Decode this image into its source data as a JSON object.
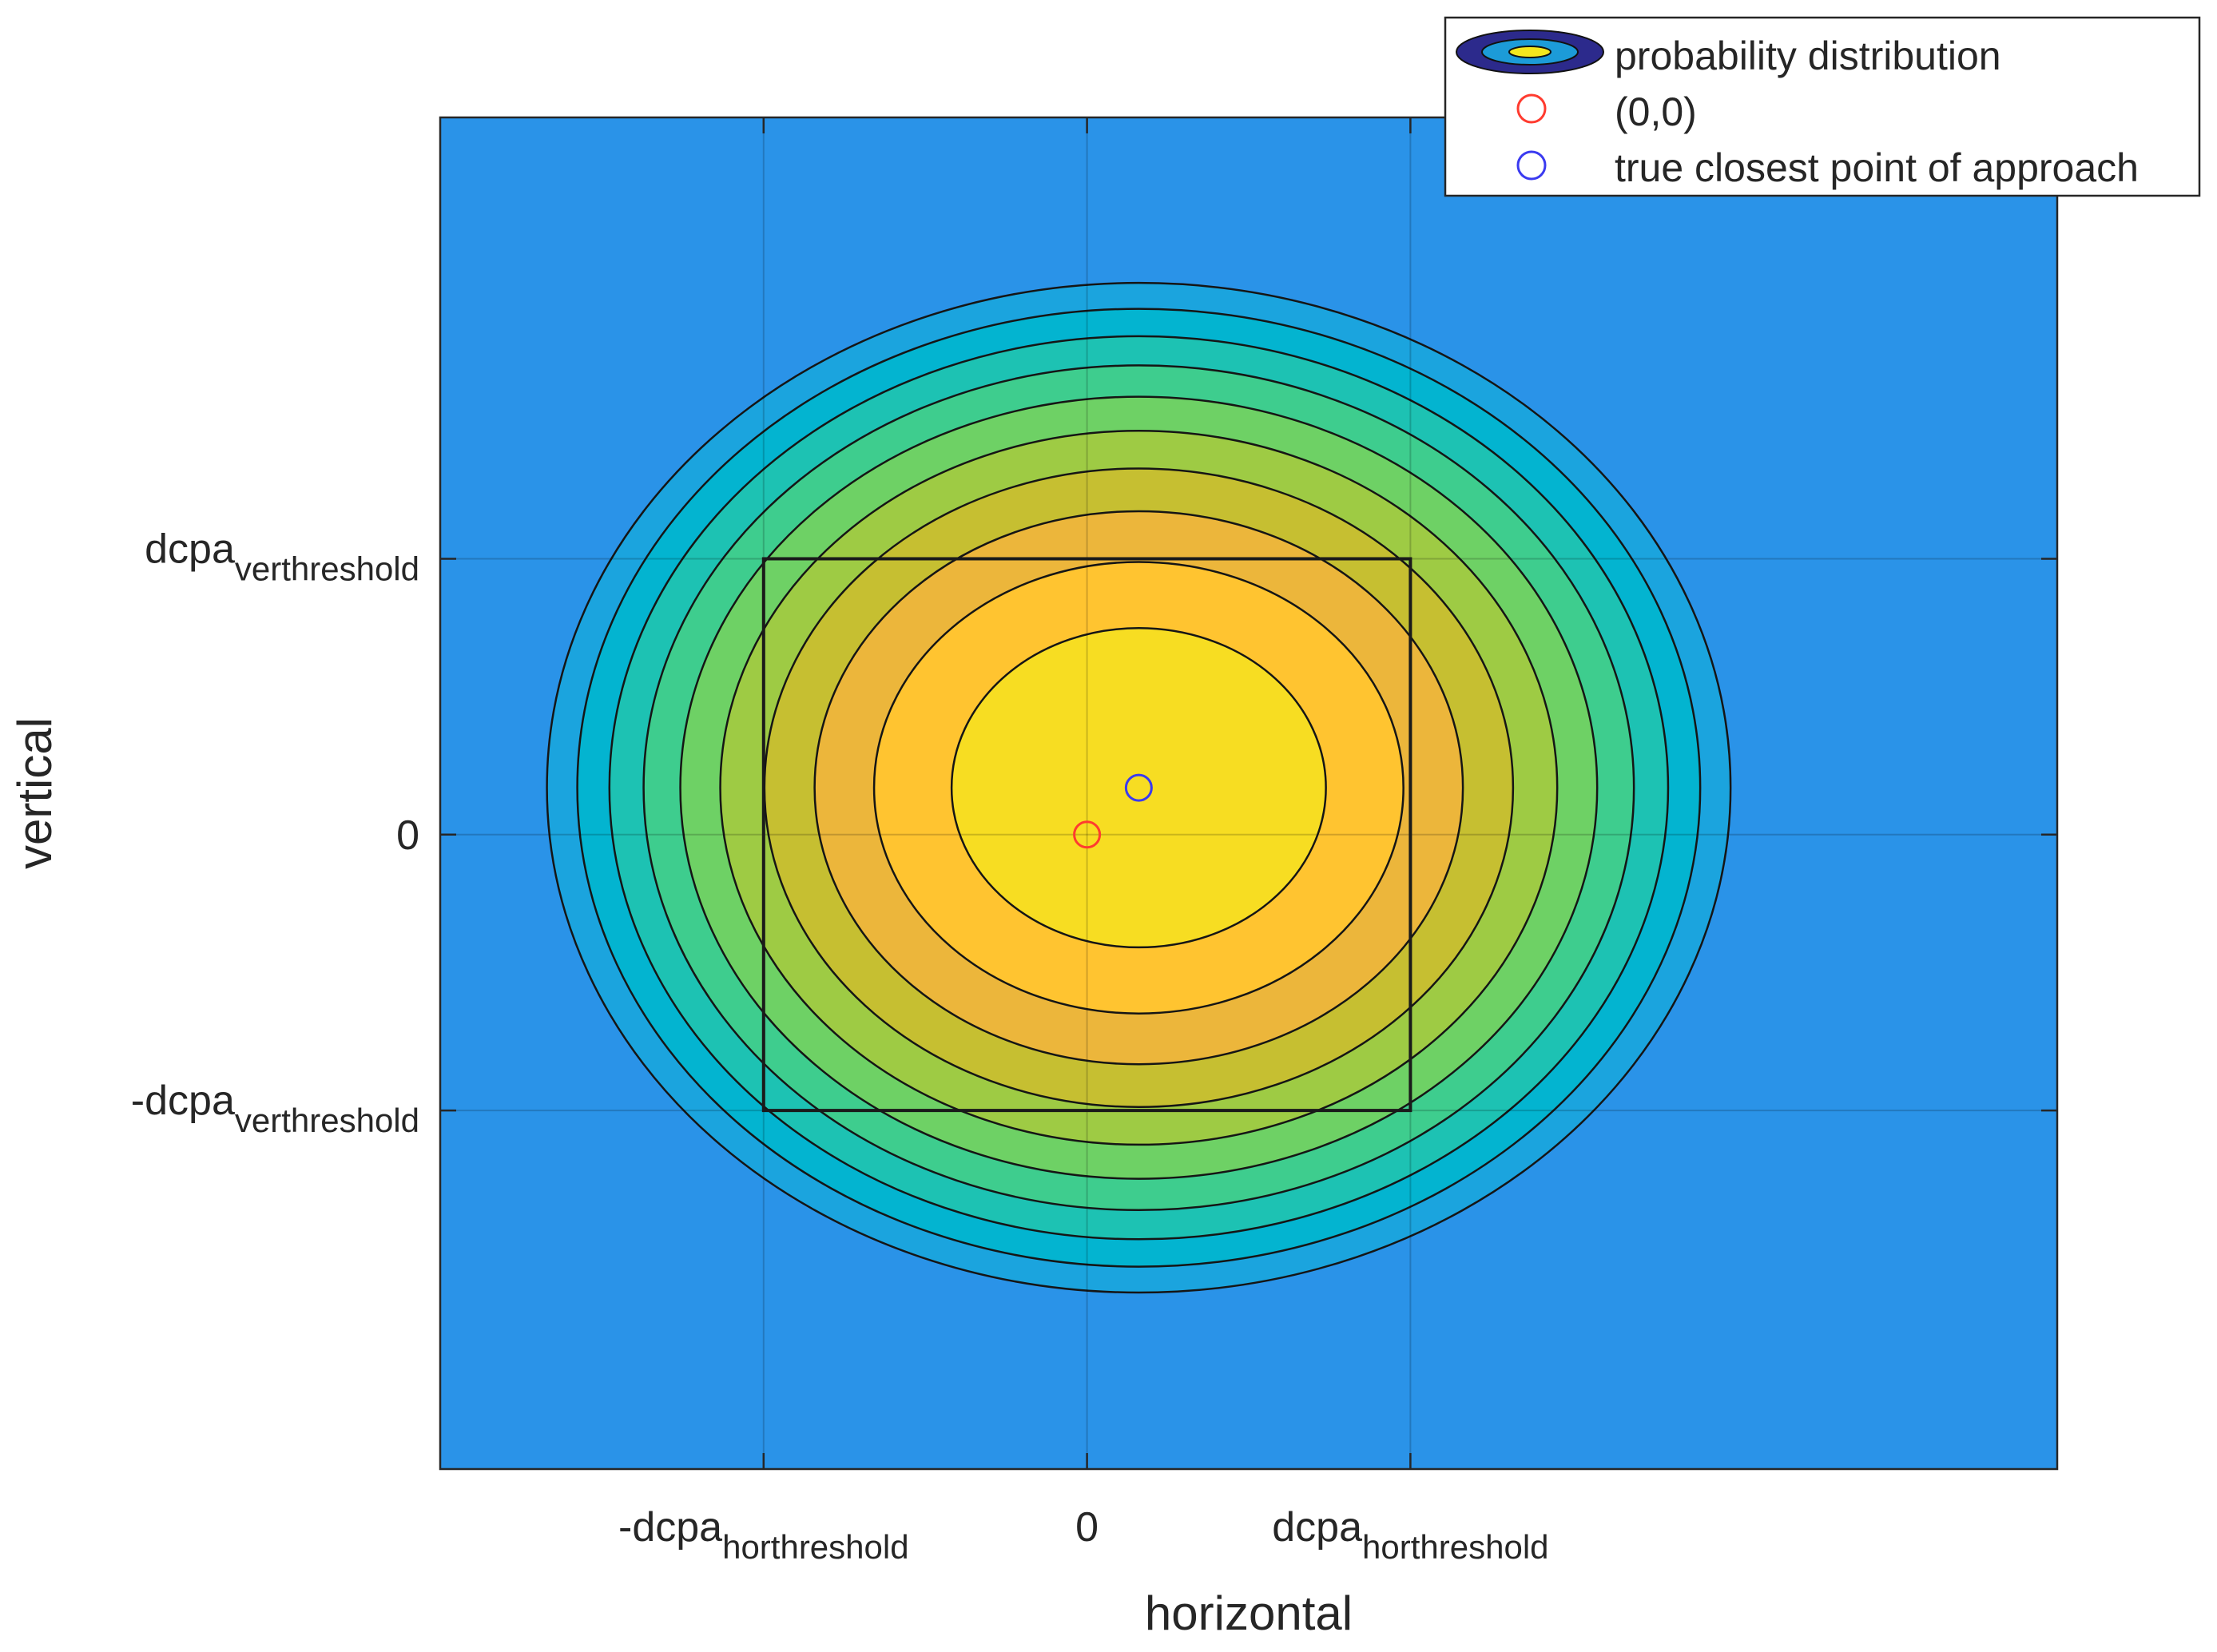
{
  "chart_data": {
    "type": "contour",
    "title": "",
    "xlabel": "horizontal",
    "ylabel": "vertical",
    "xlim": [
      -1.0,
      1.5
    ],
    "ylim": [
      -1.15,
      1.3
    ],
    "grid": true,
    "x_ticks": [
      {
        "value": -0.5,
        "label": "-dcpa",
        "sub": "horthreshold"
      },
      {
        "value": 0,
        "label": "0",
        "sub": ""
      },
      {
        "value": 0.5,
        "label": "dcpa",
        "sub": "horthreshold"
      }
    ],
    "y_ticks": [
      {
        "value": 0.5,
        "label": "dcpa",
        "sub": "verthreshold"
      },
      {
        "value": 0,
        "label": "0",
        "sub": ""
      },
      {
        "value": -0.5,
        "label": "-dcpa",
        "sub": "verthreshold"
      }
    ],
    "distribution": {
      "center": [
        0.08,
        0.085
      ],
      "contour_levels": 10,
      "outer_semi_axes": [
        0.915,
        0.915
      ],
      "colors": [
        "#2a93e8",
        "#1ba4de",
        "#03b4d0",
        "#1dc2b3",
        "#3ecd8e",
        "#6ed165",
        "#9ecb44",
        "#c6bf31",
        "#ecb63b",
        "#ffc430",
        "#f7dd22",
        "#f1e91d"
      ]
    },
    "threshold_box": {
      "x": [
        -0.5,
        0.5
      ],
      "y": [
        -0.5,
        0.5
      ]
    },
    "markers": [
      {
        "name": "(0,0)",
        "x": 0,
        "y": 0,
        "color": "#ff3b2f"
      },
      {
        "name": "true closest point of approach",
        "x": 0.08,
        "y": 0.085,
        "color": "#3a3af0"
      }
    ],
    "legend": {
      "position": "top-right",
      "entries": [
        {
          "label": "probability distribution",
          "symbol": "contour"
        },
        {
          "label": "(0,0)",
          "symbol": "red-circle"
        },
        {
          "label": "true closest point of approach",
          "symbol": "blue-circle"
        }
      ]
    }
  }
}
